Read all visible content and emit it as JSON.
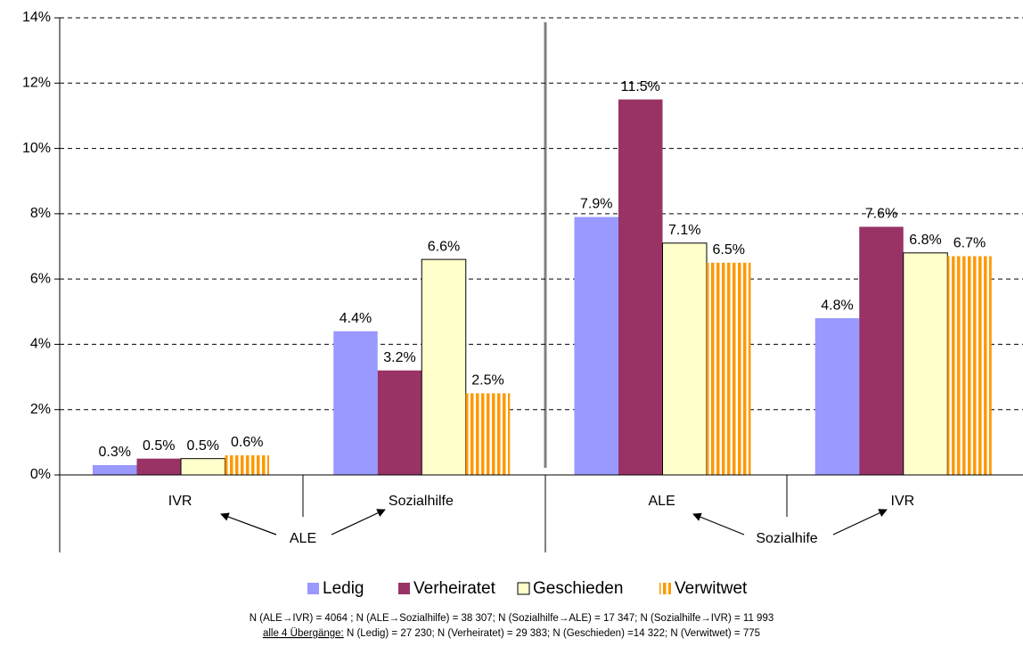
{
  "chart_data": {
    "type": "bar",
    "categories": [
      "IVR",
      "Sozialhilfe",
      "ALE",
      "IVR"
    ],
    "group_labels": [
      "ALE",
      "Sozialhife"
    ],
    "series": [
      {
        "name": "Ledig",
        "color": "#9999ff",
        "values": [
          0.3,
          4.4,
          7.9,
          4.8
        ],
        "value_labels": [
          "0.3%",
          "4.4%",
          "7.9%",
          "4.8%"
        ]
      },
      {
        "name": "Verheiratet",
        "color": "#993366",
        "values": [
          0.5,
          3.2,
          11.5,
          7.6
        ],
        "value_labels": [
          "0.5%",
          "3.2%",
          "11.5%",
          "7.6%"
        ]
      },
      {
        "name": "Geschieden",
        "color": "#ffffcc",
        "values": [
          0.5,
          6.6,
          7.1,
          6.8
        ],
        "value_labels": [
          "0.5%",
          "6.6%",
          "7.1%",
          "6.8%"
        ]
      },
      {
        "name": "Verwitwet",
        "color": "#ff9900",
        "pattern": "vertical-stripes",
        "values": [
          0.6,
          2.5,
          6.5,
          6.7
        ],
        "value_labels": [
          "0.6%",
          "2.5%",
          "6.5%",
          "6.7%"
        ]
      }
    ],
    "ylim": [
      0,
      14
    ],
    "yticks": [
      {
        "value": 0,
        "label": "0%"
      },
      {
        "value": 2,
        "label": "2%"
      },
      {
        "value": 4,
        "label": "4%"
      },
      {
        "value": 6,
        "label": "6%"
      },
      {
        "value": 8,
        "label": "8%"
      },
      {
        "value": 10,
        "label": "10%"
      },
      {
        "value": 12,
        "label": "12%"
      },
      {
        "value": 14,
        "label": "14%"
      }
    ],
    "grid": true,
    "legend": "bottom",
    "notes": [
      "N (ALE→IVR) = 4064 ; N (ALE→Sozialhilfe) = 38 307; N (Sozialhilfe→ALE) = 17 347; N (Sozialhilfe→IVR) = 11 993",
      "alle 4 Übergänge:",
      " N (Ledig) = 27 230; N (Verheiratet) = 29 383; N (Geschieden) =14 322; N (Verwitwet) = 775"
    ]
  }
}
